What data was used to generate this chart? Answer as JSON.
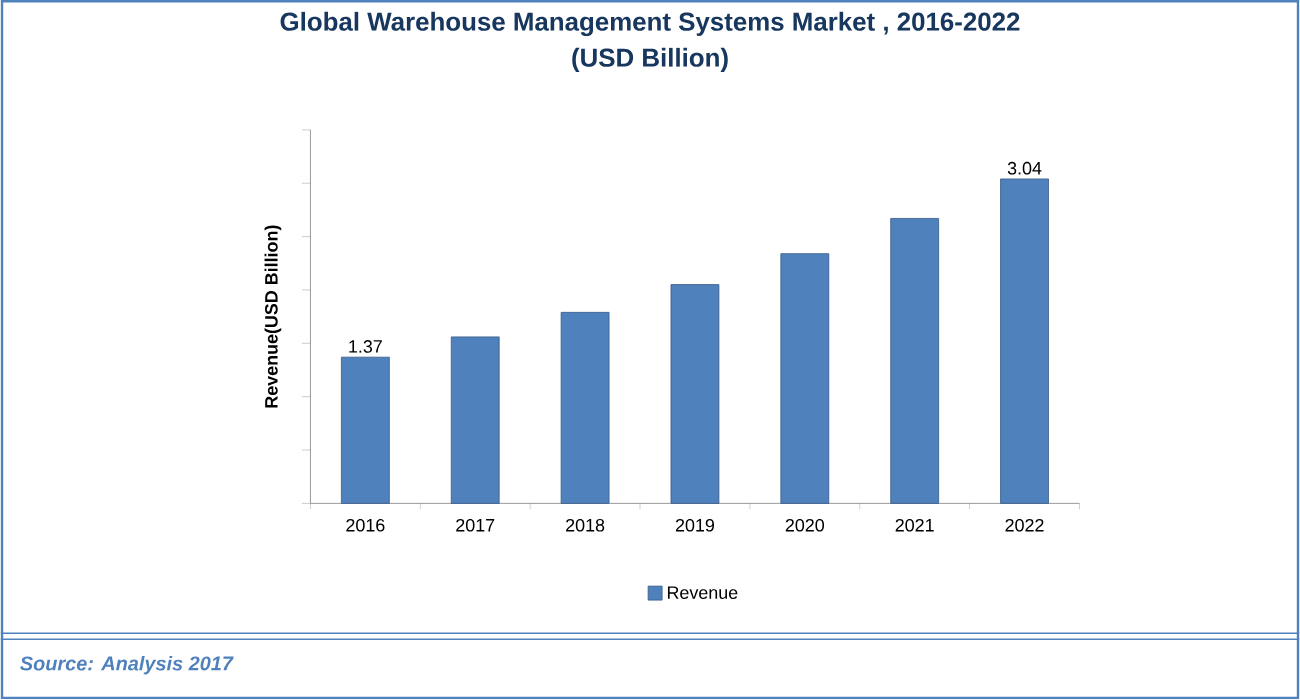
{
  "chart_data": {
    "type": "bar",
    "title": "Global Warehouse Management Systems Market , 2016-2022",
    "subtitle": "(USD Billion)",
    "ylabel": "Revenue(USD Billion)",
    "categories": [
      "2016",
      "2017",
      "2018",
      "2019",
      "2020",
      "2021",
      "2022"
    ],
    "series": [
      {
        "name": "Revenue",
        "color": "#4f81bd",
        "values": [
          1.37,
          1.56,
          1.79,
          2.05,
          2.34,
          2.67,
          3.04
        ],
        "value_labels": [
          "1.37",
          null,
          null,
          null,
          null,
          null,
          "3.04"
        ]
      }
    ],
    "ylim": [
      0,
      3.5
    ],
    "yticks": [
      {
        "value": 0,
        "label": null
      },
      {
        "value": 0.5,
        "label": null
      },
      {
        "value": 1,
        "label": null
      },
      {
        "value": 1.5,
        "label": null
      },
      {
        "value": 2,
        "label": null
      },
      {
        "value": 2.5,
        "label": null
      },
      {
        "value": 3,
        "label": null
      },
      {
        "value": 3.5,
        "label": null
      }
    ],
    "tick_labels": "x",
    "legend": "bottom",
    "annotations": [
      "Source: Analysis 2017"
    ]
  }
}
